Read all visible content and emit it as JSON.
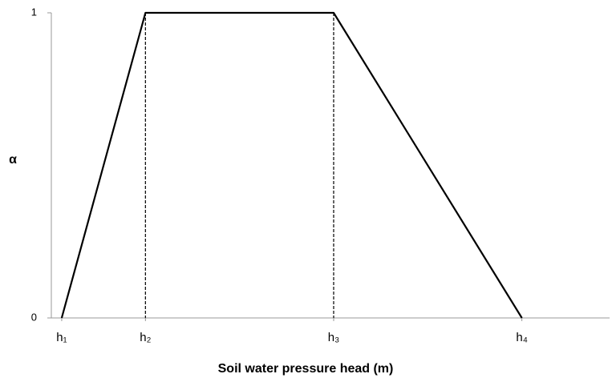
{
  "chart_data": {
    "type": "line",
    "y_label": "α",
    "x_label": "Soil water pressure head (m)",
    "x": [
      0.13,
      1.18,
      3.54,
      5.9
    ],
    "series": [
      {
        "name": "α",
        "color": "#000000",
        "values": [
          0,
          1,
          1,
          0
        ]
      }
    ],
    "xlim": [
      0,
      7
    ],
    "xticks": [
      {
        "value": 0.13,
        "label": "h₁"
      },
      {
        "value": 1.18,
        "label": "h₂"
      },
      {
        "value": 3.54,
        "label": "h₃"
      },
      {
        "value": 5.9,
        "label": "h₄"
      }
    ],
    "ylim": [
      0,
      1
    ],
    "yticks": [
      0,
      1
    ]
  }
}
